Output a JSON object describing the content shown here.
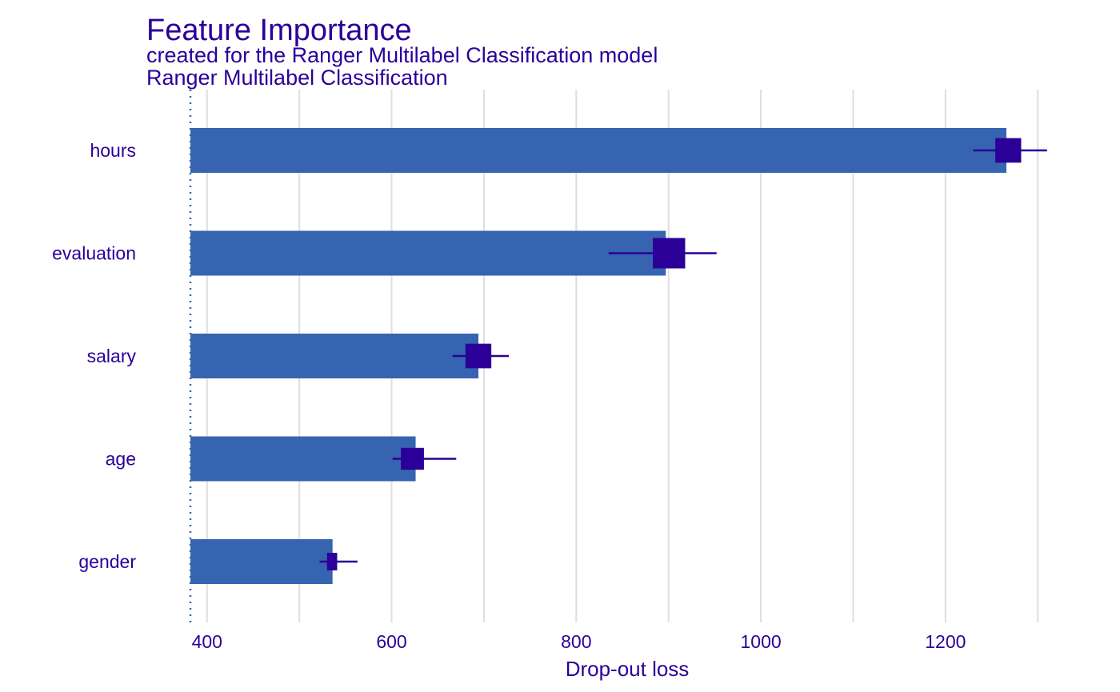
{
  "chart_data": {
    "type": "bar",
    "orientation": "horizontal",
    "title": "Feature Importance",
    "subtitle": "created for the Ranger Multilabel Classification model",
    "panel_title": "Ranger Multilabel Classification",
    "xlabel": "Drop-out loss",
    "ylabel": "",
    "xlim": [
      382,
      1318
    ],
    "xticks": [
      400,
      600,
      800,
      1000,
      1200
    ],
    "baseline": 382,
    "grid": true,
    "categories": [
      "hours",
      "evaluation",
      "salary",
      "age",
      "gender"
    ],
    "values": [
      1266,
      897,
      694,
      626,
      536
    ],
    "boxplot": [
      {
        "min": 1230,
        "q1": 1254,
        "median": 1268,
        "q3": 1282,
        "max": 1310
      },
      {
        "min": 835,
        "q1": 883,
        "median": 900,
        "q3": 918,
        "max": 952
      },
      {
        "min": 666,
        "q1": 680,
        "median": 694,
        "q3": 708,
        "max": 727
      },
      {
        "min": 601,
        "q1": 610,
        "median": 624,
        "q3": 635,
        "max": 670
      },
      {
        "min": 522,
        "q1": 530,
        "median": 535,
        "q3": 541,
        "max": 563
      }
    ],
    "colors": {
      "bar": "#3664b0",
      "boxplot": "#2a0099",
      "text": "#2a0099",
      "grid": "#dedede",
      "baseline": "#3664b0"
    }
  }
}
